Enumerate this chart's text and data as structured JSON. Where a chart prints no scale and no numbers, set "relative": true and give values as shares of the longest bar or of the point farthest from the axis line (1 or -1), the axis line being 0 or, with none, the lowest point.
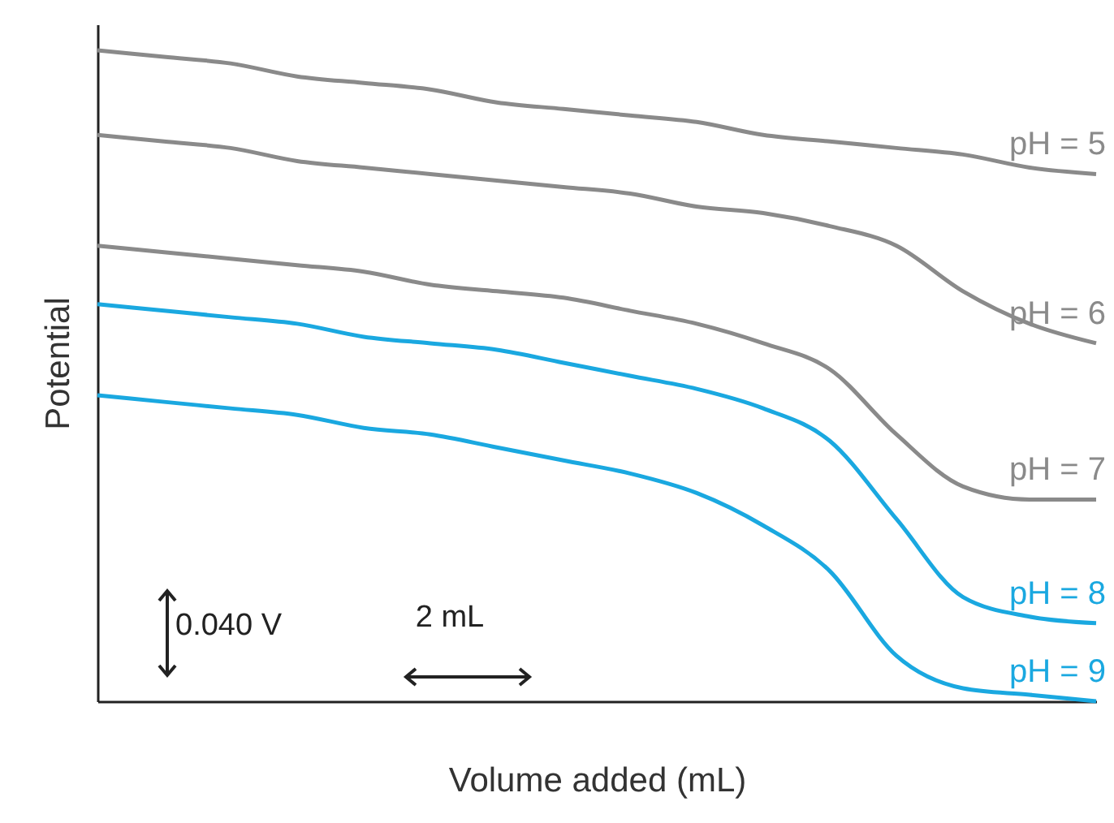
{
  "chart_data": {
    "type": "line",
    "relative": true,
    "xlabel": "Volume added (mL)",
    "ylabel": "Potential",
    "categories": [
      null,
      null,
      null,
      null,
      null,
      null,
      null,
      null,
      null,
      null,
      null,
      null,
      null,
      null,
      null,
      null
    ],
    "series": [
      {
        "name": "pH = 5",
        "color": "#8a8a8a",
        "values": [
          1.0,
          0.99,
          0.98,
          0.96,
          0.95,
          0.94,
          0.92,
          0.91,
          0.9,
          0.89,
          0.87,
          0.86,
          0.85,
          0.84,
          0.82,
          0.81
        ]
      },
      {
        "name": "pH = 6",
        "color": "#8a8a8a",
        "values": [
          0.87,
          0.86,
          0.85,
          0.83,
          0.82,
          0.81,
          0.8,
          0.79,
          0.78,
          0.76,
          0.75,
          0.73,
          0.7,
          0.63,
          0.58,
          0.55
        ]
      },
      {
        "name": "pH = 7",
        "color": "#8a8a8a",
        "values": [
          0.7,
          0.69,
          0.68,
          0.67,
          0.66,
          0.64,
          0.63,
          0.62,
          0.6,
          0.58,
          0.55,
          0.51,
          0.41,
          0.33,
          0.31,
          0.31
        ]
      },
      {
        "name": "pH = 8",
        "color": "#1aa8e0",
        "values": [
          0.61,
          0.6,
          0.59,
          0.58,
          0.56,
          0.55,
          0.54,
          0.52,
          0.5,
          0.48,
          0.45,
          0.4,
          0.28,
          0.16,
          0.13,
          0.12
        ]
      },
      {
        "name": "pH = 9",
        "color": "#1aa8e0",
        "values": [
          0.47,
          0.46,
          0.45,
          0.44,
          0.42,
          0.41,
          0.39,
          0.37,
          0.35,
          0.32,
          0.27,
          0.2,
          0.07,
          0.02,
          0.01,
          0.0
        ]
      }
    ],
    "annotations": [
      "0.040 V",
      "2 mL"
    ]
  }
}
